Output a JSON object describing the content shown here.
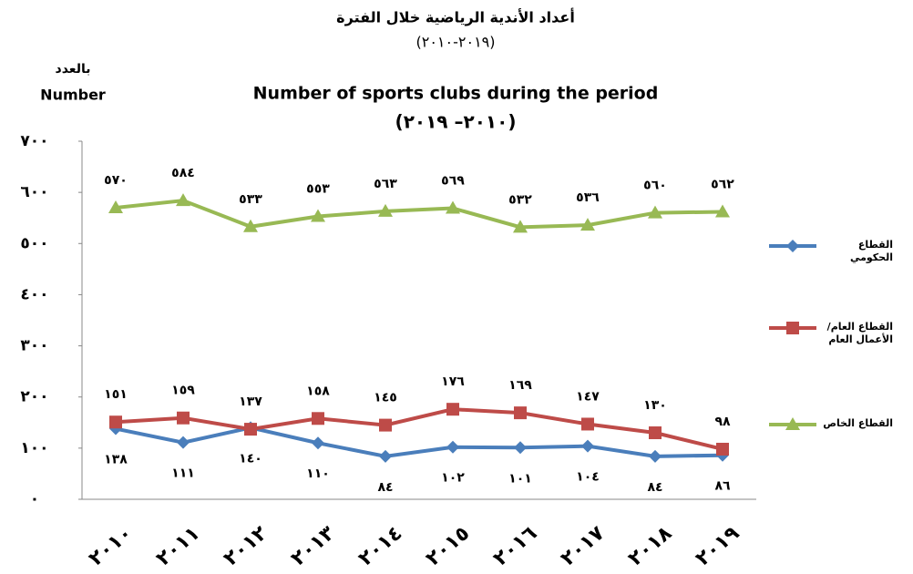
{
  "chart_data": {
    "type": "line",
    "title": "أعداد الأندية الرياضية خلال الفترة",
    "title_years": "(٢٠١٩-٢٠١٠)",
    "subtitle": "Number of sports clubs during the period",
    "subtitle_years": "(٢٠١٠– ٢٠١٩)",
    "y_label": "بالعدد",
    "y_label_en": "Number",
    "categories": [
      "٢٠١٠",
      "٢٠١١",
      "٢٠١٢",
      "٢٠١٣",
      "٢٠١٤",
      "٢٠١٥",
      "٢٠١٦",
      "٢٠١٧",
      "٢٠١٨",
      "٢٠١٩"
    ],
    "series": [
      {
        "name": "القطاع الحكومي",
        "color": "#4a7ebb",
        "marker": "diamond",
        "values": [
          138,
          111,
          140,
          110,
          84,
          102,
          101,
          104,
          84,
          86
        ],
        "value_labels": [
          "١٣٨",
          "١١١",
          "١٤٠",
          "١١٠",
          "٨٤",
          "١٠٢",
          "١٠١",
          "١٠٤",
          "٨٤",
          "٨٦"
        ]
      },
      {
        "name": "القطاع العام/الأعمال العام",
        "color": "#be4b48",
        "marker": "square",
        "values": [
          151,
          159,
          137,
          158,
          145,
          176,
          169,
          147,
          130,
          98
        ],
        "value_labels": [
          "١٥١",
          "١٥٩",
          "١٣٧",
          "١٥٨",
          "١٤٥",
          "١٧٦",
          "١٦٩",
          "١٤٧",
          "١٣٠",
          "٩٨"
        ]
      },
      {
        "name": "القطاع الخاص",
        "color": "#98b954",
        "marker": "triangle",
        "values": [
          570,
          584,
          533,
          553,
          563,
          569,
          532,
          536,
          560,
          562
        ],
        "value_labels": [
          "٥٧٠",
          "٥٨٤",
          "٥٣٣",
          "٥٥٣",
          "٥٦٣",
          "٥٦٩",
          "٥٣٢",
          "٥٣٦",
          "٥٦٠",
          "٥٦٢"
        ]
      }
    ],
    "ylim": [
      0,
      700
    ],
    "yticks": [
      {
        "value": 0,
        "label": "٠"
      },
      {
        "value": 100,
        "label": "١٠٠"
      },
      {
        "value": 200,
        "label": "٢٠٠"
      },
      {
        "value": 300,
        "label": "٣٠٠"
      },
      {
        "value": 400,
        "label": "٤٠٠"
      },
      {
        "value": 500,
        "label": "٥٠٠"
      },
      {
        "value": 600,
        "label": "٦٠٠"
      },
      {
        "value": 700,
        "label": "٧٠٠"
      }
    ],
    "grid": false,
    "legend": "right"
  }
}
